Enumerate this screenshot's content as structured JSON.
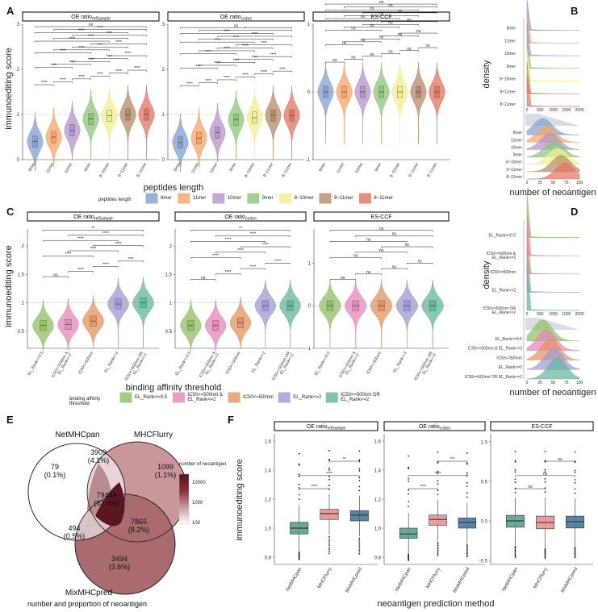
{
  "colors": {
    "length": [
      "#7f9fcf",
      "#f4a466",
      "#b491cb",
      "#8dc37a",
      "#f1ef8e",
      "#b58a6a",
      "#e5705c"
    ],
    "threshold": [
      "#8fbf63",
      "#e585b7",
      "#e3925e",
      "#9d98d6",
      "#62b59a"
    ],
    "method": [
      "#4e9a8a",
      "#e8898a",
      "#3f6f94"
    ],
    "venn_scale": [
      "#ffffff",
      "#c99a9d",
      "#8b2f3a",
      "#5a0d18"
    ]
  },
  "panels": {
    "A": "A",
    "B": "B",
    "C": "C",
    "D": "D",
    "E": "E",
    "F": "F"
  },
  "strip_titles": {
    "oe_ref_main": "OE ratio",
    "oe_ref_sub": "refSample",
    "oe_codon_main": "OE ratio",
    "oe_codon_sub": "codon",
    "es_ccf": "ES-CCF"
  },
  "chart_data": [
    {
      "id": "A",
      "type": "violin",
      "ylabel": "immunoediting score",
      "xlabel": "peptides length",
      "categories": [
        "8mer",
        "11mer",
        "10mer",
        "9mer",
        "8~10mer",
        "9~11mer",
        "8~11mer"
      ],
      "legend_title": "peptides length",
      "legend": [
        "8mer",
        "11mer",
        "10mer",
        "9mer",
        "8~10mer",
        "9~11mer",
        "8~11mer"
      ],
      "facets": [
        {
          "title": "OE ratio refSample",
          "ylim": [
            0,
            3
          ],
          "yticks": [
            0,
            1,
            2,
            3
          ],
          "medians": [
            0.4,
            0.5,
            0.65,
            0.9,
            0.97,
            1.0,
            1.0
          ],
          "sig": [
            "****",
            "****",
            "****",
            "****",
            "****",
            "****",
            "****",
            "****",
            "****",
            "****",
            "****",
            "****",
            "****",
            "****",
            "****",
            "****",
            "****",
            "****",
            "****",
            "****",
            "ns"
          ]
        },
        {
          "title": "OE ratio codon",
          "ylim": [
            0,
            3
          ],
          "yticks": [
            0,
            1,
            2,
            3
          ],
          "medians": [
            0.38,
            0.48,
            0.6,
            0.88,
            0.93,
            0.98,
            0.98
          ],
          "sig": [
            "****",
            "****",
            "****",
            "****",
            "****",
            "****",
            "****",
            "****",
            "****",
            "****",
            "****",
            "****",
            "****",
            "****",
            "****",
            "****",
            "****",
            "****",
            "****",
            "*",
            "ns"
          ]
        },
        {
          "title": "ES-CCF",
          "ylim": [
            -1,
            1
          ],
          "yticks": [
            -1,
            0,
            1
          ],
          "medians": [
            0,
            0,
            0,
            0,
            0,
            0,
            0
          ],
          "sig": [
            "ns",
            "ns",
            "ns",
            "ns",
            "ns",
            "ns",
            "ns",
            "ns",
            "ns",
            "ns",
            "ns",
            "ns",
            "ns",
            "ns",
            "ns",
            "ns",
            "ns",
            "ns",
            "ns",
            "ns",
            "ns"
          ]
        }
      ]
    },
    {
      "id": "B",
      "type": "ridgeline",
      "ylabel": "density",
      "xlabel": "number of neoantigen",
      "xticks_top": [
        "0",
        "500",
        "1000",
        "1500",
        "2000"
      ],
      "xticks_bottom": [
        "0",
        "25",
        "50",
        "75",
        "100"
      ],
      "rows": [
        "8mer",
        "11mer",
        "10mer",
        "9mer",
        "8~10mer",
        "9~11mer",
        "8~11mer"
      ]
    },
    {
      "id": "C",
      "type": "violin",
      "ylabel": "immunoediting score",
      "xlabel": "binding affinity threshold",
      "categories": [
        "EL_Rank<=0.5",
        "IC50<=500nm &\nEL_Rank<=2",
        "IC50<=500nm",
        "EL_Rank<=2",
        "IC50<=500nm OR\nEL_Rank<=2"
      ],
      "legend_title": "binding affinity\nthreshold",
      "legend": [
        "EL_Rank<=0.5",
        "IC50<=500nm &\nEL_Rank<=2",
        "IC50<=500nm",
        "EL_Rank<=2",
        "IC50<=500nm OR\nEL_Rank<=2"
      ],
      "facets": [
        {
          "title": "OE ratio refSample",
          "ylim": [
            0.2,
            2.3
          ],
          "yticks": [
            0.5,
            1.0,
            1.5,
            2.0
          ],
          "medians": [
            0.6,
            0.62,
            0.68,
            0.98,
            1.0
          ],
          "sig": [
            "ns",
            "****",
            "****",
            "****",
            "****",
            "****",
            "****",
            "****",
            "****",
            "**"
          ]
        },
        {
          "title": "OE ratio codon",
          "ylim": [
            0.2,
            2.3
          ],
          "yticks": [
            0.5,
            1.0,
            1.5,
            2.0
          ],
          "medians": [
            0.6,
            0.6,
            0.65,
            0.95,
            0.95
          ],
          "sig": [
            "ns",
            "****",
            "****",
            "****",
            "****",
            "****",
            "****",
            "****",
            "****",
            "**"
          ]
        },
        {
          "title": "ES-CCF",
          "ylim": [
            -1,
            1.8
          ],
          "yticks": [
            -1,
            0,
            1
          ],
          "medians": [
            0,
            0,
            0,
            0,
            0
          ],
          "sig": [
            "ns",
            "ns",
            "ns",
            "ns",
            "ns",
            "ns",
            "ns",
            "ns",
            "ns",
            "ns"
          ]
        }
      ]
    },
    {
      "id": "D",
      "type": "ridgeline",
      "ylabel": "density",
      "xlabel": "number of neoantigen",
      "xticks_top": [
        "0",
        "500",
        "1000",
        "1500",
        "2000"
      ],
      "xticks_bottom": [
        "0",
        "25",
        "50",
        "75",
        "100"
      ],
      "rows_top": [
        "EL_Rank<=0.5",
        "IC50<=500nm &\nEL_Rank<=2",
        "IC50<=500nm",
        "EL_Rank<=2",
        "IC50<=500nm OR\nEL_Rank<=2"
      ],
      "rows_bottom": [
        "EL_Rank<=0.5",
        "IC50<=500nm & EL_Rank<=2",
        "IC50<=500nm",
        "EL_Rank<=2",
        "IC50<=500nm OR EL_Rank<=2"
      ]
    },
    {
      "id": "E",
      "type": "venn",
      "sets": [
        "NetMHCpan",
        "MHCFlurry",
        "MixMHCpred"
      ],
      "regions": [
        {
          "sets": [
            "NetMHCpan"
          ],
          "count": "79",
          "pct": "(0.1%)"
        },
        {
          "sets": [
            "MHCFlurry"
          ],
          "count": "1099",
          "pct": "(1.1%)"
        },
        {
          "sets": [
            "MixMHCpred"
          ],
          "count": "3494",
          "pct": "(3.6%)"
        },
        {
          "sets": [
            "NetMHCpan",
            "MHCFlurry"
          ],
          "count": "3909",
          "pct": "(4.1%)"
        },
        {
          "sets": [
            "NetMHCpan",
            "MixMHCpred"
          ],
          "count": "494",
          "pct": "(0.5%)"
        },
        {
          "sets": [
            "MHCFlurry",
            "MixMHCpred"
          ],
          "count": "7865",
          "pct": "(8.2%)"
        },
        {
          "sets": [
            "NetMHCpan",
            "MHCFlurry",
            "MixMHCpred"
          ],
          "count": "79438",
          "pct": "(82.4%)"
        }
      ],
      "legend_title": "number of neoantigen",
      "legend_ticks": [
        "10000",
        "1000",
        "100"
      ],
      "caption": "number and proportion of neoantigen"
    },
    {
      "id": "F",
      "type": "boxplot",
      "ylabel": "immunoediting score",
      "xlabel": "neoantigen prediction method",
      "categories": [
        "NetMHCpan",
        "MHCFlurry",
        "MixMHCpred"
      ],
      "facets": [
        {
          "title": "OE ratio refSample",
          "ylim": [
            0.75,
            1.65
          ],
          "yticks": [
            0.8,
            1.0,
            1.2,
            1.4,
            1.6
          ],
          "boxes": [
            [
              0.96,
              1.0,
              1.04
            ],
            [
              1.06,
              1.1,
              1.13
            ],
            [
              1.05,
              1.09,
              1.12
            ]
          ],
          "sig": [
            "****",
            "****",
            "**"
          ]
        },
        {
          "title": "OE ratio codon",
          "ylim": [
            0.75,
            1.65
          ],
          "yticks": [
            0.8,
            1.0,
            1.2,
            1.4,
            1.6
          ],
          "boxes": [
            [
              0.93,
              0.96,
              1.0
            ],
            [
              1.02,
              1.06,
              1.09
            ],
            [
              1.0,
              1.04,
              1.07
            ]
          ],
          "sig": [
            "****",
            "****",
            "***"
          ]
        },
        {
          "title": "ES-CCF",
          "ylim": [
            -0.55,
            1.1
          ],
          "yticks": [
            -0.5,
            0.0,
            0.5,
            1.0
          ],
          "boxes": [
            [
              -0.08,
              0.0,
              0.07
            ],
            [
              -0.1,
              -0.02,
              0.06
            ],
            [
              -0.09,
              -0.01,
              0.06
            ]
          ],
          "sig": [
            "ns",
            "ns",
            "ns"
          ]
        }
      ]
    }
  ]
}
